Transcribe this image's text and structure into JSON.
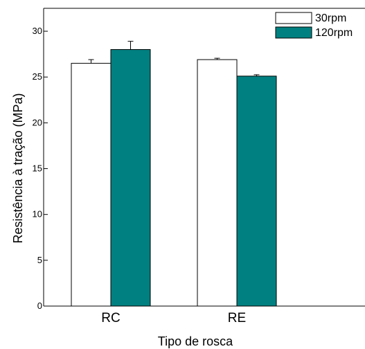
{
  "chart_data": {
    "type": "bar",
    "title": "",
    "xlabel": "Tipo de rosca",
    "ylabel": "Resistência à tração (MPa)",
    "categories": [
      "RC",
      "RE"
    ],
    "yticks": [
      0,
      5,
      10,
      15,
      20,
      25,
      30
    ],
    "ylim": [
      0,
      32.5
    ],
    "grid": false,
    "legend_position": "top-right",
    "series": [
      {
        "name": "30rpm",
        "values": [
          26.5,
          26.9
        ],
        "errors": [
          0.4,
          0.15
        ],
        "color": "#ffffff"
      },
      {
        "name": "120rpm",
        "values": [
          28.0,
          25.1
        ],
        "errors": [
          0.9,
          0.15
        ],
        "color": "#008080"
      }
    ]
  }
}
